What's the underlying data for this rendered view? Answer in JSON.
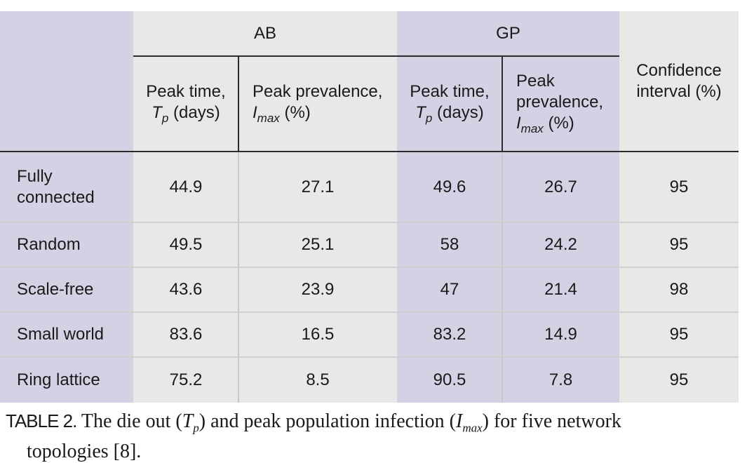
{
  "table": {
    "group_headers": {
      "ab": "AB",
      "gp": "GP"
    },
    "col_headers": {
      "ab_peak_time": {
        "line1": "Peak time,",
        "sym": "T",
        "sub": "p",
        "unit": " (days)"
      },
      "ab_peak_prev": {
        "line1": "Peak prevalence,",
        "sym": "I",
        "sub": "max",
        "unit": " (%)"
      },
      "gp_peak_time": {
        "line1": "Peak time,",
        "sym": "T",
        "sub": "p",
        "unit": " (days)"
      },
      "gp_peak_prev": {
        "line1": "Peak",
        "line2": "prevalence,",
        "sym": "I",
        "sub": "max",
        "unit": " (%)"
      },
      "confidence": {
        "line1": "Confidence",
        "line2": "interval (%)"
      }
    },
    "rows": [
      {
        "topology": "Fully connected",
        "ab_tp": "44.9",
        "ab_imax": "27.1",
        "gp_tp": "49.6",
        "gp_imax": "26.7",
        "ci": "95"
      },
      {
        "topology": "Random",
        "ab_tp": "49.5",
        "ab_imax": "25.1",
        "gp_tp": "58",
        "gp_imax": "24.2",
        "ci": "95"
      },
      {
        "topology": "Scale-free",
        "ab_tp": "43.6",
        "ab_imax": "23.9",
        "gp_tp": "47",
        "gp_imax": "21.4",
        "ci": "98"
      },
      {
        "topology": "Small world",
        "ab_tp": "83.6",
        "ab_imax": "16.5",
        "gp_tp": "83.2",
        "gp_imax": "14.9",
        "ci": "95"
      },
      {
        "topology": "Ring lattice",
        "ab_tp": "75.2",
        "ab_imax": "8.5",
        "gp_tp": "90.5",
        "gp_imax": "7.8",
        "ci": "95"
      }
    ],
    "row_label_lines": {
      "fully_connected_1": "Fully",
      "fully_connected_2": "connected"
    }
  },
  "caption": {
    "label": "TABLE 2.",
    "text_1": " The die out (",
    "tp_sym": "T",
    "tp_sub": "p",
    "text_2": ") and peak population infection (",
    "imax_sym": "I",
    "imax_sub": "max",
    "text_3": ") for five network",
    "text_4": "topologies [8]."
  },
  "colors": {
    "grey": "#e9e8e6",
    "purple": "#d3d2e4",
    "rule": "#2b2b2b"
  }
}
